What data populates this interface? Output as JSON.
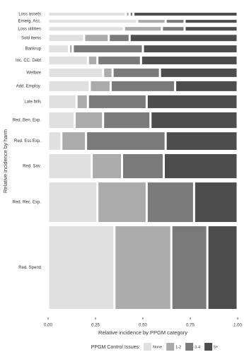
{
  "chart_data": {
    "type": "mosaic",
    "x_label": "Relative incidence by PPGM category",
    "y_label": "Relative incidence by harm",
    "legend_title": "PPGM Control Issues:",
    "categories": [
      "Loss assets",
      "Emerg. Acc.",
      "Loss utilities",
      "Sold items",
      "Bankrup",
      "Inc. CC. Debt",
      "Welfare",
      "Add. Employ.",
      "Late bills",
      "Red. Ben. Exp.",
      "Red. Ess Exp.",
      "Red. Sav.",
      "Red. Rec. Exp.",
      "Red. Spend"
    ],
    "row_weights": [
      1.2,
      1.2,
      1.5,
      2.6,
      2.9,
      3.2,
      3.5,
      4.1,
      5.3,
      6.5,
      7.3,
      10.0,
      16.4,
      34.3
    ],
    "series": [
      {
        "name": "None",
        "color": "#e0e0e0",
        "values": [
          0.41,
          0.47,
          0.4,
          0.19,
          0.11,
          0.21,
          0.29,
          0.22,
          0.15,
          0.14,
          0.07,
          0.23,
          0.26,
          0.35
        ]
      },
      {
        "name": "1-2",
        "color": "#ababab",
        "values": [
          0.02,
          0.15,
          0.2,
          0.13,
          0.02,
          0.05,
          0.05,
          0.11,
          0.06,
          0.15,
          0.13,
          0.16,
          0.26,
          0.3
        ]
      },
      {
        "name": "3-4",
        "color": "#7a7a7a",
        "values": [
          0.02,
          0.1,
          0.12,
          0.11,
          0.37,
          0.23,
          0.25,
          0.34,
          0.31,
          0.25,
          0.42,
          0.22,
          0.25,
          0.19
        ]
      },
      {
        "name": "5+",
        "color": "#4d4d4d",
        "values": [
          0.55,
          0.28,
          0.28,
          0.57,
          0.5,
          0.51,
          0.41,
          0.33,
          0.48,
          0.46,
          0.38,
          0.39,
          0.23,
          0.16
        ]
      }
    ],
    "xlim": [
      0,
      1
    ],
    "xticks": [
      {
        "value": 0,
        "label": "0.00"
      },
      {
        "value": 0.25,
        "label": "0.25"
      },
      {
        "value": 0.5,
        "label": "0.50"
      },
      {
        "value": 0.75,
        "label": "0.75"
      },
      {
        "value": 1,
        "label": "1.00"
      }
    ]
  }
}
